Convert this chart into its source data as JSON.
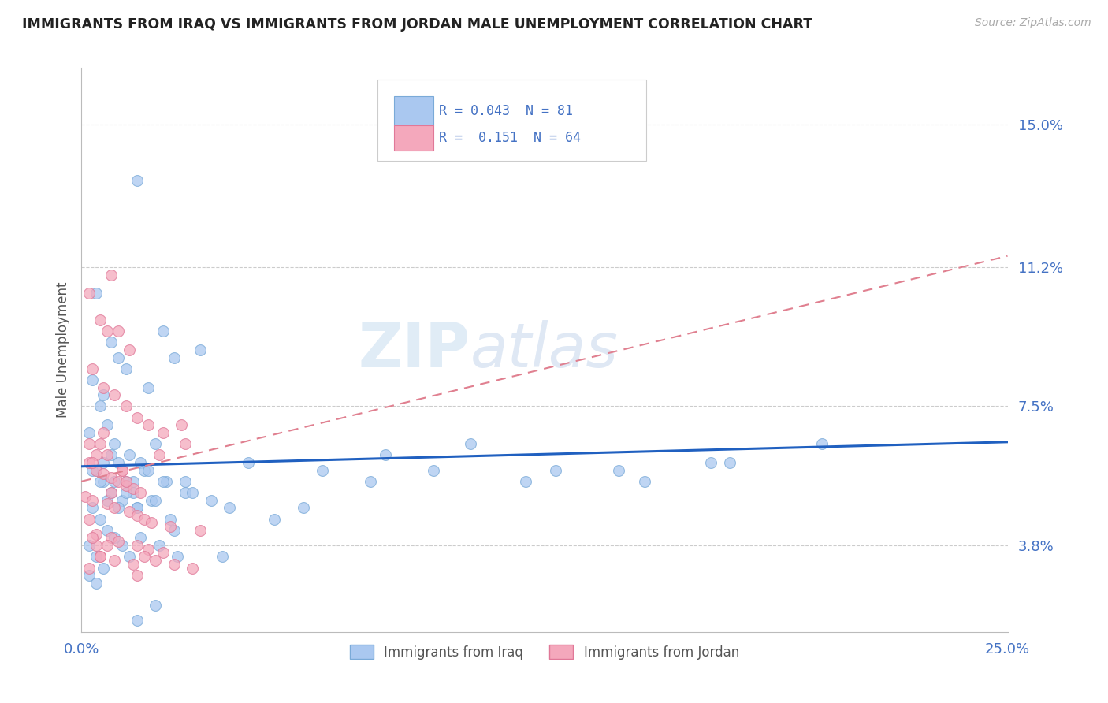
{
  "title": "IMMIGRANTS FROM IRAQ VS IMMIGRANTS FROM JORDAN MALE UNEMPLOYMENT CORRELATION CHART",
  "source": "Source: ZipAtlas.com",
  "ylabel": "Male Unemployment",
  "xlim": [
    0.0,
    25.0
  ],
  "ylim": [
    1.5,
    16.5
  ],
  "x_tick_labels": [
    "0.0%",
    "25.0%"
  ],
  "y_tick_vals": [
    3.8,
    7.5,
    11.2,
    15.0
  ],
  "y_tick_labels": [
    "3.8%",
    "7.5%",
    "11.2%",
    "15.0%"
  ],
  "grid_color": "#cccccc",
  "background_color": "#ffffff",
  "iraq_color": "#aac8f0",
  "iraq_edge_color": "#7aaad8",
  "jordan_color": "#f4a8bc",
  "jordan_edge_color": "#e07898",
  "iraq_R": "0.043",
  "iraq_N": "81",
  "jordan_R": "0.151",
  "jordan_N": "64",
  "legend_label_iraq": "Immigrants from Iraq",
  "legend_label_jordan": "Immigrants from Jordan",
  "watermark": "ZIPatlas",
  "iraq_trend_x0": 0.0,
  "iraq_trend_y0": 5.9,
  "iraq_trend_x1": 25.0,
  "iraq_trend_y1": 6.55,
  "jordan_trend_x0": 0.0,
  "jordan_trend_y0": 5.5,
  "jordan_trend_x1": 25.0,
  "jordan_trend_y1": 11.5,
  "iraq_x": [
    1.5,
    0.4,
    0.8,
    1.0,
    2.2,
    0.3,
    0.6,
    1.2,
    0.5,
    0.7,
    1.8,
    2.5,
    3.2,
    0.2,
    0.9,
    1.3,
    1.6,
    2.0,
    0.4,
    0.6,
    0.8,
    1.1,
    1.4,
    1.7,
    2.3,
    2.8,
    0.3,
    0.5,
    0.7,
    0.9,
    1.0,
    1.2,
    1.5,
    1.9,
    2.4,
    3.0,
    0.2,
    0.4,
    0.6,
    0.8,
    1.1,
    1.3,
    1.6,
    2.1,
    2.6,
    0.3,
    0.5,
    0.7,
    1.0,
    1.4,
    1.8,
    2.2,
    0.2,
    0.4,
    0.6,
    0.9,
    1.2,
    1.5,
    2.0,
    2.8,
    4.5,
    6.5,
    8.2,
    10.5,
    12.8,
    15.2,
    17.5,
    20.0,
    4.0,
    7.8,
    9.5,
    12.0,
    14.5,
    17.0,
    5.2,
    6.0,
    3.5,
    2.5,
    3.8,
    2.0,
    1.5
  ],
  "iraq_y": [
    13.5,
    10.5,
    9.2,
    8.8,
    9.5,
    8.2,
    7.8,
    8.5,
    7.5,
    7.0,
    8.0,
    8.8,
    9.0,
    6.8,
    6.5,
    6.2,
    6.0,
    6.5,
    5.8,
    5.5,
    5.2,
    5.0,
    5.5,
    5.8,
    5.5,
    5.2,
    4.8,
    4.5,
    4.2,
    4.0,
    6.0,
    5.5,
    4.8,
    5.0,
    4.5,
    5.2,
    3.8,
    3.5,
    3.2,
    6.2,
    3.8,
    3.5,
    4.0,
    3.8,
    3.5,
    5.8,
    5.5,
    5.0,
    4.8,
    5.2,
    5.8,
    5.5,
    3.0,
    2.8,
    6.0,
    5.5,
    5.2,
    4.8,
    5.0,
    5.5,
    6.0,
    5.8,
    6.2,
    6.5,
    5.8,
    5.5,
    6.0,
    6.5,
    4.8,
    5.5,
    5.8,
    5.5,
    5.8,
    6.0,
    4.5,
    4.8,
    5.0,
    4.2,
    3.5,
    2.2,
    1.8
  ],
  "jordan_x": [
    0.2,
    0.5,
    0.8,
    1.0,
    1.3,
    0.3,
    0.6,
    0.9,
    1.2,
    1.5,
    1.8,
    2.2,
    2.8,
    0.4,
    0.7,
    0.2,
    0.4,
    0.6,
    0.8,
    1.0,
    1.2,
    1.4,
    1.6,
    0.1,
    0.3,
    0.5,
    0.7,
    0.9,
    1.1,
    1.3,
    1.5,
    1.7,
    1.9,
    2.1,
    2.4,
    2.7,
    3.2,
    0.2,
    0.4,
    0.6,
    0.8,
    1.0,
    1.2,
    1.5,
    1.8,
    2.2,
    0.3,
    0.5,
    0.7,
    0.9,
    1.1,
    1.4,
    1.7,
    2.0,
    2.5,
    3.0,
    0.2,
    0.4,
    0.8,
    1.5,
    0.2,
    0.3,
    0.5,
    0.7
  ],
  "jordan_y": [
    10.5,
    9.8,
    11.0,
    9.5,
    9.0,
    8.5,
    8.0,
    7.8,
    7.5,
    7.2,
    7.0,
    6.8,
    6.5,
    6.2,
    9.5,
    6.0,
    5.8,
    5.7,
    5.6,
    5.5,
    5.4,
    5.3,
    5.2,
    5.1,
    5.0,
    6.5,
    4.9,
    4.8,
    5.8,
    4.7,
    4.6,
    4.5,
    4.4,
    6.2,
    4.3,
    7.0,
    4.2,
    6.5,
    4.1,
    6.8,
    4.0,
    3.9,
    5.5,
    3.8,
    3.7,
    3.6,
    6.0,
    3.5,
    6.2,
    3.4,
    5.8,
    3.3,
    3.5,
    3.4,
    3.3,
    3.2,
    4.5,
    3.8,
    5.2,
    3.0,
    3.2,
    4.0,
    3.5,
    3.8
  ]
}
